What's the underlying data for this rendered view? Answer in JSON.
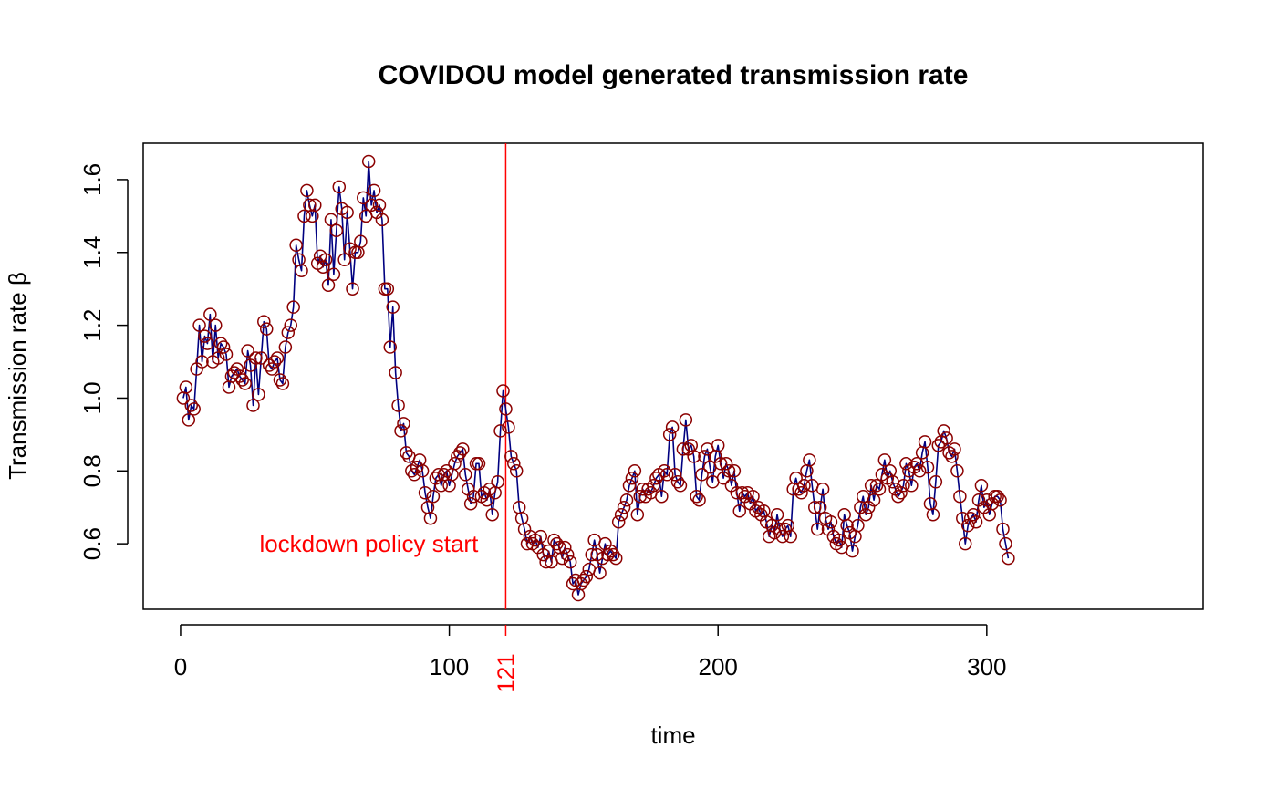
{
  "chart_data": {
    "type": "line",
    "title": "COVIDOU model generated transmission rate",
    "xlabel": "time",
    "ylabel": "Transmission rate β",
    "xlim": [
      -13.9,
      380.5
    ],
    "ylim": [
      0.42,
      1.7
    ],
    "x_ticks": [
      {
        "value": 0,
        "label": "0"
      },
      {
        "value": 100,
        "label": "100"
      },
      {
        "value": 200,
        "label": "200"
      },
      {
        "value": 300,
        "label": "300"
      }
    ],
    "y_ticks": [
      {
        "value": 0.6,
        "label": "0.6"
      },
      {
        "value": 0.8,
        "label": "0.8"
      },
      {
        "value": 1.0,
        "label": "1.0"
      },
      {
        "value": 1.2,
        "label": "1.2"
      },
      {
        "value": 1.4,
        "label": "1.4"
      },
      {
        "value": 1.6,
        "label": "1.6"
      }
    ],
    "grid": false,
    "line_color": "#000080",
    "marker_color": "#8B0000",
    "marker": "open-circle",
    "reference_line": {
      "x": 121,
      "tick_label": "121",
      "text": "lockdown policy start",
      "color": "#FF0000"
    },
    "series": [
      {
        "x_start": 1,
        "x_step": 1,
        "values": [
          1.0,
          1.03,
          0.94,
          0.98,
          0.97,
          1.08,
          1.2,
          1.1,
          1.17,
          1.15,
          1.23,
          1.1,
          1.2,
          1.11,
          1.15,
          1.14,
          1.12,
          1.03,
          1.06,
          1.07,
          1.08,
          1.06,
          1.05,
          1.04,
          1.13,
          1.09,
          0.98,
          1.11,
          1.01,
          1.11,
          1.21,
          1.19,
          1.09,
          1.08,
          1.1,
          1.11,
          1.05,
          1.04,
          1.14,
          1.18,
          1.2,
          1.25,
          1.42,
          1.38,
          1.35,
          1.5,
          1.57,
          1.53,
          1.5,
          1.53,
          1.37,
          1.39,
          1.36,
          1.38,
          1.31,
          1.49,
          1.34,
          1.46,
          1.58,
          1.52,
          1.38,
          1.51,
          1.41,
          1.3,
          1.4,
          1.4,
          1.43,
          1.55,
          1.5,
          1.65,
          1.53,
          1.57,
          1.51,
          1.53,
          1.49,
          1.3,
          1.3,
          1.14,
          1.25,
          1.07,
          0.98,
          0.91,
          0.93,
          0.85,
          0.84,
          0.8,
          0.79,
          0.81,
          0.83,
          0.8,
          0.74,
          0.7,
          0.67,
          0.73,
          0.78,
          0.79,
          0.76,
          0.79,
          0.8,
          0.76,
          0.79,
          0.82,
          0.84,
          0.85,
          0.86,
          0.79,
          0.75,
          0.71,
          0.73,
          0.82,
          0.82,
          0.73,
          0.74,
          0.72,
          0.75,
          0.68,
          0.74,
          0.77,
          0.91,
          1.02,
          0.97,
          0.92,
          0.84,
          0.82,
          0.8,
          0.7,
          0.67,
          0.64,
          0.6,
          0.62,
          0.6,
          0.61,
          0.59,
          0.62,
          0.57,
          0.55,
          0.58,
          0.55,
          0.61,
          0.6,
          0.59,
          0.56,
          0.59,
          0.57,
          0.55,
          0.49,
          0.5,
          0.46,
          0.49,
          0.5,
          0.51,
          0.53,
          0.57,
          0.61,
          0.57,
          0.52,
          0.56,
          0.6,
          0.57,
          0.58,
          0.57,
          0.56,
          0.66,
          0.68,
          0.7,
          0.72,
          0.76,
          0.78,
          0.8,
          0.68,
          0.73,
          0.75,
          0.73,
          0.75,
          0.74,
          0.76,
          0.78,
          0.79,
          0.73,
          0.8,
          0.79,
          0.9,
          0.92,
          0.79,
          0.77,
          0.76,
          0.86,
          0.94,
          0.86,
          0.87,
          0.84,
          0.73,
          0.72,
          0.79,
          0.84,
          0.86,
          0.81,
          0.77,
          0.84,
          0.87,
          0.82,
          0.78,
          0.82,
          0.8,
          0.76,
          0.8,
          0.74,
          0.69,
          0.74,
          0.73,
          0.74,
          0.71,
          0.73,
          0.69,
          0.7,
          0.68,
          0.69,
          0.66,
          0.62,
          0.65,
          0.63,
          0.68,
          0.64,
          0.62,
          0.64,
          0.65,
          0.62,
          0.75,
          0.78,
          0.75,
          0.74,
          0.76,
          0.8,
          0.83,
          0.76,
          0.7,
          0.64,
          0.7,
          0.75,
          0.67,
          0.64,
          0.66,
          0.62,
          0.6,
          0.61,
          0.59,
          0.68,
          0.65,
          0.63,
          0.58,
          0.62,
          0.65,
          0.7,
          0.73,
          0.68,
          0.7,
          0.76,
          0.72,
          0.76,
          0.75,
          0.79,
          0.83,
          0.78,
          0.8,
          0.77,
          0.75,
          0.73,
          0.74,
          0.76,
          0.82,
          0.8,
          0.76,
          0.81,
          0.82,
          0.8,
          0.85,
          0.88,
          0.81,
          0.71,
          0.68,
          0.77,
          0.87,
          0.88,
          0.91,
          0.89,
          0.85,
          0.84,
          0.86,
          0.8,
          0.73,
          0.67,
          0.6,
          0.65,
          0.67,
          0.68,
          0.66,
          0.72,
          0.76,
          0.7,
          0.72,
          0.68,
          0.71,
          0.73,
          0.73,
          0.72,
          0.64,
          0.6,
          0.56
        ]
      }
    ]
  }
}
